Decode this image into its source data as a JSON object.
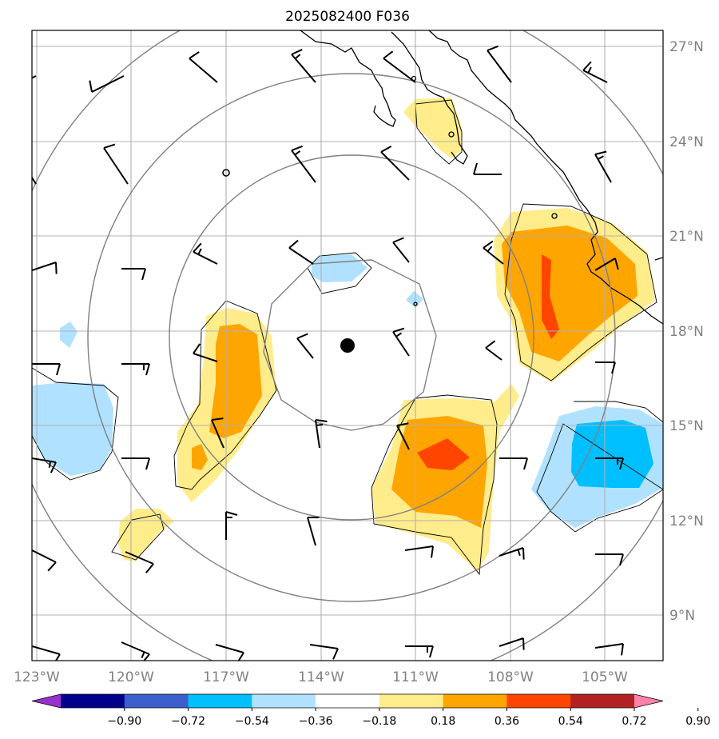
{
  "title": "2025082400 F036",
  "map": {
    "lon_range": [
      -123.2,
      -103.6
    ],
    "lat_range": [
      7.6,
      27.6
    ],
    "center": {
      "lon": -113.2,
      "lat": 17.5
    },
    "lon_ticks": [
      {
        "value": -123,
        "label": "123°W"
      },
      {
        "value": -120,
        "label": "120°W"
      },
      {
        "value": -117,
        "label": "117°W"
      },
      {
        "value": -114,
        "label": "114°W"
      },
      {
        "value": -111,
        "label": "111°W"
      },
      {
        "value": -108,
        "label": "108°W"
      },
      {
        "value": -105,
        "label": "105°W"
      }
    ],
    "lat_ticks": [
      {
        "value": 27,
        "label": "27°N"
      },
      {
        "value": 24,
        "label": "24°N"
      },
      {
        "value": 21,
        "label": "21°N"
      },
      {
        "value": 18,
        "label": "18°N"
      },
      {
        "value": 15,
        "label": "15°N"
      },
      {
        "value": 12,
        "label": "12°N"
      },
      {
        "value": 9,
        "label": "9°N"
      }
    ],
    "gridlines": true,
    "range_ring_radii_deg": [
      2.7,
      5.7,
      8.5,
      11.4
    ]
  },
  "colorbar": {
    "tick_labels": [
      "−0.90",
      "−0.72",
      "−0.54",
      "−0.36",
      "−0.18",
      "0.18",
      "0.36",
      "0.54",
      "0.72",
      "0.90"
    ],
    "colors": [
      "#9932cc",
      "#00008b",
      "#3a5fcd",
      "#00bfff",
      "#b0e2ff",
      "#ffffff",
      "#ffec8b",
      "#ffa500",
      "#ff4500",
      "#b22222",
      "#ff82ab"
    ],
    "extend": "both"
  },
  "colors": {
    "grid": "#b0b0b0",
    "rings": "#808080",
    "coast": "#000000",
    "center_marker": "#000000"
  }
}
